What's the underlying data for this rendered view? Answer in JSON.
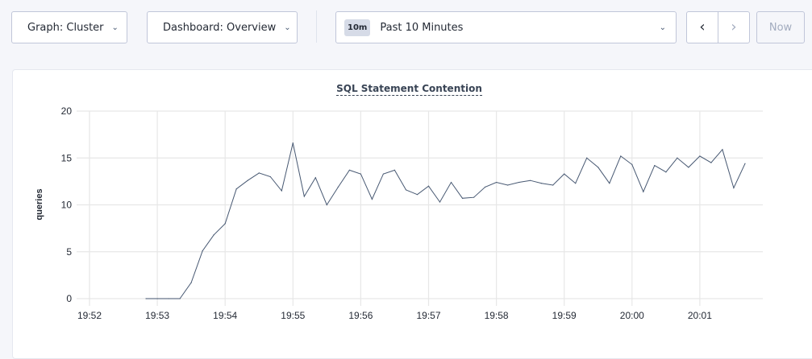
{
  "toolbar": {
    "graph_label": "Graph: Cluster",
    "dashboard_label": "Dashboard: Overview",
    "range_badge": "10m",
    "range_label": "Past 10 Minutes",
    "prev_icon": "chevron-left-icon",
    "next_icon": "chevron-right-icon",
    "now_label": "Now"
  },
  "chart_data": {
    "type": "line",
    "title": "SQL Statement Contention",
    "xlabel": "",
    "ylabel": "queries",
    "ylim": [
      0,
      20
    ],
    "yticks": [
      0,
      5,
      10,
      15,
      20
    ],
    "xticks": [
      "19:52",
      "19:53",
      "19:54",
      "19:55",
      "19:56",
      "19:57",
      "19:58",
      "19:59",
      "20:00",
      "20:01"
    ],
    "grid": true,
    "line_color": "#475872",
    "x": [
      "19:52:50",
      "19:53:00",
      "19:53:10",
      "19:53:20",
      "19:53:30",
      "19:53:40",
      "19:53:50",
      "19:54:00",
      "19:54:10",
      "19:54:20",
      "19:54:30",
      "19:54:40",
      "19:54:50",
      "19:55:00",
      "19:55:10",
      "19:55:20",
      "19:55:30",
      "19:55:40",
      "19:55:50",
      "19:56:00",
      "19:56:10",
      "19:56:20",
      "19:56:30",
      "19:56:40",
      "19:56:50",
      "19:57:00",
      "19:57:10",
      "19:57:20",
      "19:57:30",
      "19:57:40",
      "19:57:50",
      "19:58:00",
      "19:58:10",
      "19:58:20",
      "19:58:30",
      "19:58:40",
      "19:58:50",
      "19:59:00",
      "19:59:10",
      "19:59:20",
      "19:59:30",
      "19:59:40",
      "19:59:50",
      "20:00:00",
      "20:00:10",
      "20:00:20",
      "20:00:30",
      "20:00:40",
      "20:00:50",
      "20:01:00",
      "20:01:10",
      "20:01:20",
      "20:01:30",
      "20:01:40"
    ],
    "values": [
      0,
      0,
      0,
      0,
      1.7,
      5.1,
      6.8,
      8.0,
      11.7,
      12.6,
      13.4,
      13.0,
      11.5,
      16.6,
      10.9,
      12.9,
      10.0,
      11.9,
      13.7,
      13.3,
      10.6,
      13.3,
      13.7,
      11.6,
      11.1,
      12.0,
      10.3,
      12.4,
      10.7,
      10.8,
      11.9,
      12.4,
      12.1,
      12.4,
      12.6,
      12.3,
      12.1,
      13.3,
      12.3,
      15.0,
      14.0,
      12.3,
      15.2,
      14.3,
      11.4,
      14.2,
      13.5,
      15.0,
      14.0,
      15.2,
      14.5,
      15.9,
      11.8,
      14.4
    ]
  }
}
